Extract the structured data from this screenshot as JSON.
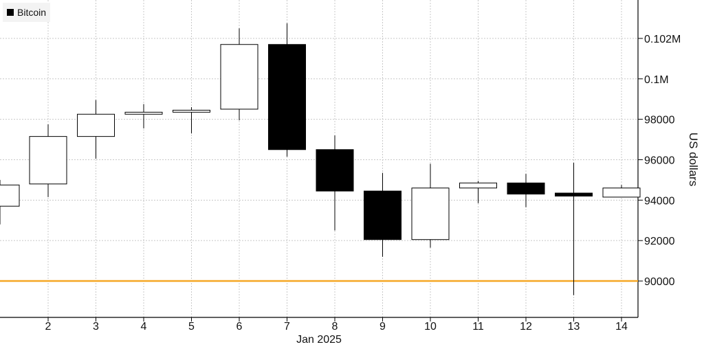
{
  "chart_data": {
    "type": "candlestick",
    "title": "",
    "legend": {
      "label": "Bitcoin",
      "placement": "top-left"
    },
    "ylabel": "US dollars",
    "xlabel": "Jan 2025",
    "y_axis_side": "right",
    "ylim": [
      88200,
      103900
    ],
    "y_ticks": [
      {
        "value": 90000,
        "label": "90000"
      },
      {
        "value": 92000,
        "label": "92000"
      },
      {
        "value": 94000,
        "label": "94000"
      },
      {
        "value": 96000,
        "label": "96000"
      },
      {
        "value": 98000,
        "label": "98000"
      },
      {
        "value": 100000,
        "label": "0.1M"
      },
      {
        "value": 102000,
        "label": "0.102M"
      }
    ],
    "x_ticks": [
      "2",
      "3",
      "4",
      "5",
      "6",
      "7",
      "8",
      "9",
      "10",
      "11",
      "12",
      "13",
      "14"
    ],
    "grid": true,
    "reference_line": {
      "value": 90000,
      "color": "#f5a623"
    },
    "colors": {
      "up_fill": "#ffffff",
      "down_fill": "#000000",
      "stroke": "#000000"
    },
    "partial_first_candle": {
      "open": 93700,
      "close": 94750,
      "high": 95000,
      "low": 92800
    },
    "candles": [
      {
        "day": "2",
        "open": 94800,
        "close": 97150,
        "high": 97750,
        "low": 94150
      },
      {
        "day": "3",
        "open": 97150,
        "close": 98250,
        "high": 98950,
        "low": 96050
      },
      {
        "day": "4",
        "open": 98250,
        "close": 98350,
        "high": 98750,
        "low": 97550
      },
      {
        "day": "5",
        "open": 98350,
        "close": 98450,
        "high": 98600,
        "low": 97300
      },
      {
        "day": "6",
        "open": 98500,
        "close": 101700,
        "high": 102500,
        "low": 97950
      },
      {
        "day": "7",
        "open": 101700,
        "close": 96500,
        "high": 102750,
        "low": 96150
      },
      {
        "day": "8",
        "open": 96500,
        "close": 94450,
        "high": 97200,
        "low": 92500
      },
      {
        "day": "9",
        "open": 94450,
        "close": 92050,
        "high": 95350,
        "low": 91200
      },
      {
        "day": "10",
        "open": 92050,
        "close": 94600,
        "high": 95800,
        "low": 91650
      },
      {
        "day": "11",
        "open": 94600,
        "close": 94850,
        "high": 94950,
        "low": 93850
      },
      {
        "day": "12",
        "open": 94850,
        "close": 94300,
        "high": 95300,
        "low": 93650
      },
      {
        "day": "13",
        "open": 94350,
        "close": 94200,
        "high": 95850,
        "low": 89300
      },
      {
        "day": "14",
        "open": 94150,
        "close": 94600,
        "high": 94750,
        "low": 94150
      }
    ]
  }
}
